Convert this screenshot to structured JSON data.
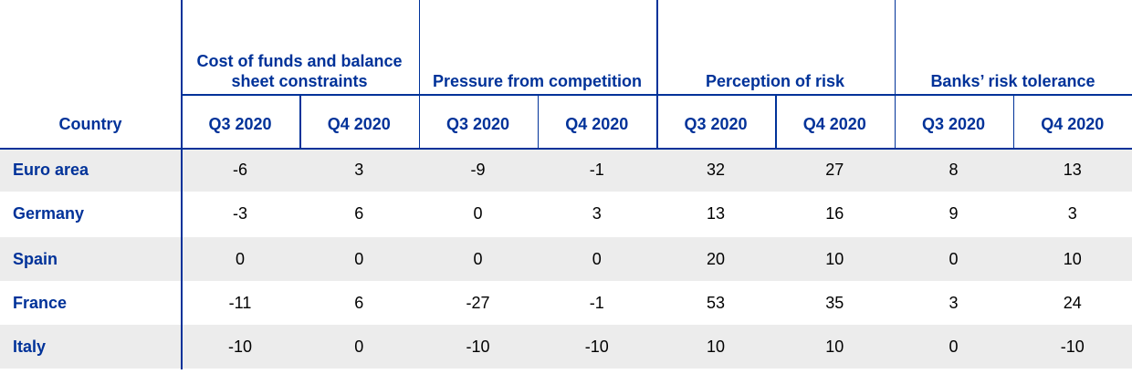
{
  "table": {
    "header": {
      "country": "Country",
      "groups": [
        "Cost of funds and balance sheet constraints",
        "Pressure from competition",
        "Perception of risk",
        "Banks’ risk tolerance"
      ],
      "quarters": [
        "Q3 2020",
        "Q4 2020",
        "Q3 2020",
        "Q4 2020",
        "Q3 2020",
        "Q4 2020",
        "Q3 2020",
        "Q4 2020"
      ]
    },
    "rows": [
      {
        "country": "Euro area",
        "values": [
          -6,
          3,
          -9,
          -1,
          32,
          27,
          8,
          13
        ]
      },
      {
        "country": "Germany",
        "values": [
          -3,
          6,
          0,
          3,
          13,
          16,
          9,
          3
        ]
      },
      {
        "country": "Spain",
        "values": [
          0,
          0,
          0,
          0,
          20,
          10,
          0,
          10
        ]
      },
      {
        "country": "France",
        "values": [
          -11,
          6,
          -27,
          -1,
          53,
          35,
          3,
          24
        ]
      },
      {
        "country": "Italy",
        "values": [
          -10,
          0,
          -10,
          -10,
          10,
          10,
          0,
          -10
        ]
      }
    ]
  }
}
